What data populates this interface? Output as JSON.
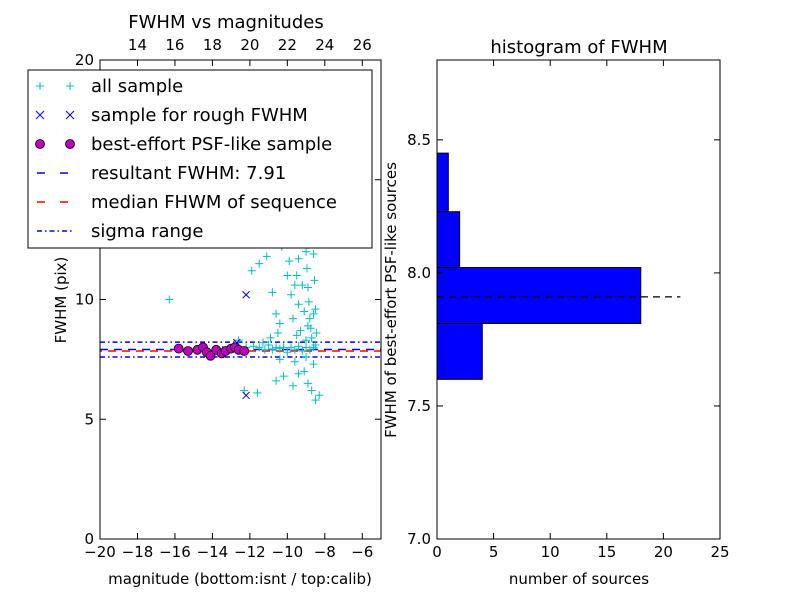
{
  "chart_data": [
    {
      "type": "scatter",
      "title": "FWHM vs magnitudes",
      "xlabel": "magnitude (bottom:isnt / top:calib)",
      "ylabel": "FWHM (pix)",
      "xlim": [
        -20,
        -5
      ],
      "ylim": [
        0,
        20
      ],
      "xticks": [
        "−20",
        "−18",
        "−16",
        "−14",
        "−12",
        "−10",
        "−8",
        "−6"
      ],
      "yticks": [
        "0",
        "5",
        "10",
        "15",
        "20"
      ],
      "top_axis": {
        "ticks": [
          "14",
          "16",
          "18",
          "20",
          "22",
          "24",
          "26"
        ],
        "offset": 32
      },
      "legend": {
        "placement": "top-left",
        "entries": [
          "all sample",
          "sample for rough FWHM",
          "best-effort PSF-like sample",
          "resultant FWHM: 7.91",
          "median FHWM of sequence",
          "sigma range"
        ]
      },
      "lines": {
        "resultant": 7.91,
        "median": 7.85,
        "sigma": [
          7.6,
          8.22
        ]
      },
      "colors": {
        "all": "#00bfbf",
        "rough": "#0000ff",
        "best": "#bf00bf",
        "resultant": "#0000ff",
        "median": "#ff0000",
        "sigma": "#0000ff"
      },
      "series": [
        {
          "name": "all sample",
          "points": [
            [
              -16.3,
              10.0
            ],
            [
              -12.6,
              8.3
            ],
            [
              -12.2,
              8.0
            ],
            [
              -11.8,
              8.05
            ],
            [
              -11.5,
              8.0
            ],
            [
              -11.2,
              7.9
            ],
            [
              -11.0,
              8.1
            ],
            [
              -10.8,
              7.9
            ],
            [
              -10.6,
              8.0
            ],
            [
              -10.4,
              7.95
            ],
            [
              -10.2,
              8.0
            ],
            [
              -10.0,
              7.8
            ],
            [
              -9.8,
              8.0
            ],
            [
              -9.6,
              7.9
            ],
            [
              -9.4,
              8.05
            ],
            [
              -9.2,
              7.85
            ],
            [
              -9.0,
              8.0
            ],
            [
              -8.8,
              7.9
            ],
            [
              -8.6,
              8.0
            ],
            [
              -8.5,
              8.1
            ],
            [
              -11.6,
              6.1
            ],
            [
              -12.3,
              6.2
            ],
            [
              -10.6,
              6.6
            ],
            [
              -10.2,
              6.8
            ],
            [
              -9.7,
              6.4
            ],
            [
              -9.4,
              6.9
            ],
            [
              -9.1,
              7.0
            ],
            [
              -8.9,
              6.5
            ],
            [
              -8.7,
              6.2
            ],
            [
              -8.5,
              5.8
            ],
            [
              -8.3,
              6.0
            ],
            [
              -8.6,
              7.3
            ],
            [
              -9.0,
              7.6
            ],
            [
              -9.6,
              7.4
            ],
            [
              -10.4,
              7.5
            ],
            [
              -11.9,
              11.2
            ],
            [
              -11.5,
              11.5
            ],
            [
              -11.1,
              11.8
            ],
            [
              -10.8,
              10.3
            ],
            [
              -10.6,
              9.4
            ],
            [
              -10.4,
              9.0
            ],
            [
              -10.3,
              12.2
            ],
            [
              -10.1,
              12.8
            ],
            [
              -9.9,
              11.6
            ],
            [
              -9.8,
              10.2
            ],
            [
              -9.7,
              9.2
            ],
            [
              -9.6,
              12.9
            ],
            [
              -9.5,
              11.0
            ],
            [
              -9.4,
              9.8
            ],
            [
              -9.3,
              12.4
            ],
            [
              -9.2,
              10.6
            ],
            [
              -9.1,
              9.5
            ],
            [
              -9.0,
              12.0
            ],
            [
              -8.95,
              11.3
            ],
            [
              -8.9,
              10.5
            ],
            [
              -8.85,
              9.9
            ],
            [
              -8.8,
              9.2
            ],
            [
              -8.75,
              8.8
            ],
            [
              -8.7,
              8.4
            ],
            [
              -8.65,
              12.8
            ],
            [
              -8.6,
              11.9
            ],
            [
              -8.55,
              10.8
            ],
            [
              -8.5,
              9.6
            ],
            [
              -8.45,
              8.6
            ],
            [
              -9.2,
              12.7
            ],
            [
              -9.4,
              11.7
            ],
            [
              -9.6,
              10.6
            ],
            [
              -9.8,
              12.5
            ],
            [
              -10.0,
              11.0
            ],
            [
              -9.3,
              8.7
            ],
            [
              -9.5,
              8.5
            ],
            [
              -9.0,
              8.3
            ],
            [
              -8.9,
              8.9
            ],
            [
              -8.6,
              9.4
            ],
            [
              -10.5,
              8.6
            ],
            [
              -10.9,
              8.4
            ],
            [
              -11.3,
              8.2
            ]
          ]
        },
        {
          "name": "sample for rough FWHM",
          "points": [
            [
              -12.2,
              10.2
            ],
            [
              -12.2,
              6.0
            ],
            [
              -12.7,
              8.2
            ],
            [
              -13.3,
              7.9
            ],
            [
              -12.5,
              7.85
            ]
          ]
        },
        {
          "name": "best-effort PSF-like sample",
          "points": [
            [
              -15.8,
              7.95
            ],
            [
              -15.3,
              7.85
            ],
            [
              -14.8,
              7.9
            ],
            [
              -14.5,
              8.0
            ],
            [
              -14.3,
              7.8
            ],
            [
              -14.1,
              7.65
            ],
            [
              -13.8,
              7.9
            ],
            [
              -13.5,
              7.75
            ],
            [
              -13.3,
              7.85
            ],
            [
              -13.0,
              7.95
            ],
            [
              -12.8,
              8.0
            ],
            [
              -12.6,
              7.9
            ],
            [
              -12.3,
              7.85
            ]
          ]
        }
      ]
    },
    {
      "type": "bar",
      "orientation": "horizontal",
      "title": "histogram of FWHM",
      "xlabel": "number of sources",
      "ylabel": "FWHM of best-effort PSF-like sources",
      "xlim": [
        0,
        25
      ],
      "ylim": [
        7.0,
        8.8
      ],
      "xticks": [
        "0",
        "5",
        "10",
        "15",
        "20",
        "25"
      ],
      "yticks": [
        "7.0",
        "7.5",
        "8.0",
        "8.5"
      ],
      "bins": [
        {
          "low": 7.6,
          "high": 7.81,
          "count": 4
        },
        {
          "low": 7.81,
          "high": 8.02,
          "count": 18
        },
        {
          "low": 8.02,
          "high": 8.23,
          "count": 2
        },
        {
          "low": 8.23,
          "high": 8.45,
          "count": 1
        }
      ],
      "reference_line": 7.91,
      "colors": {
        "bar": "#0000ff",
        "reference": "#000000"
      }
    }
  ]
}
